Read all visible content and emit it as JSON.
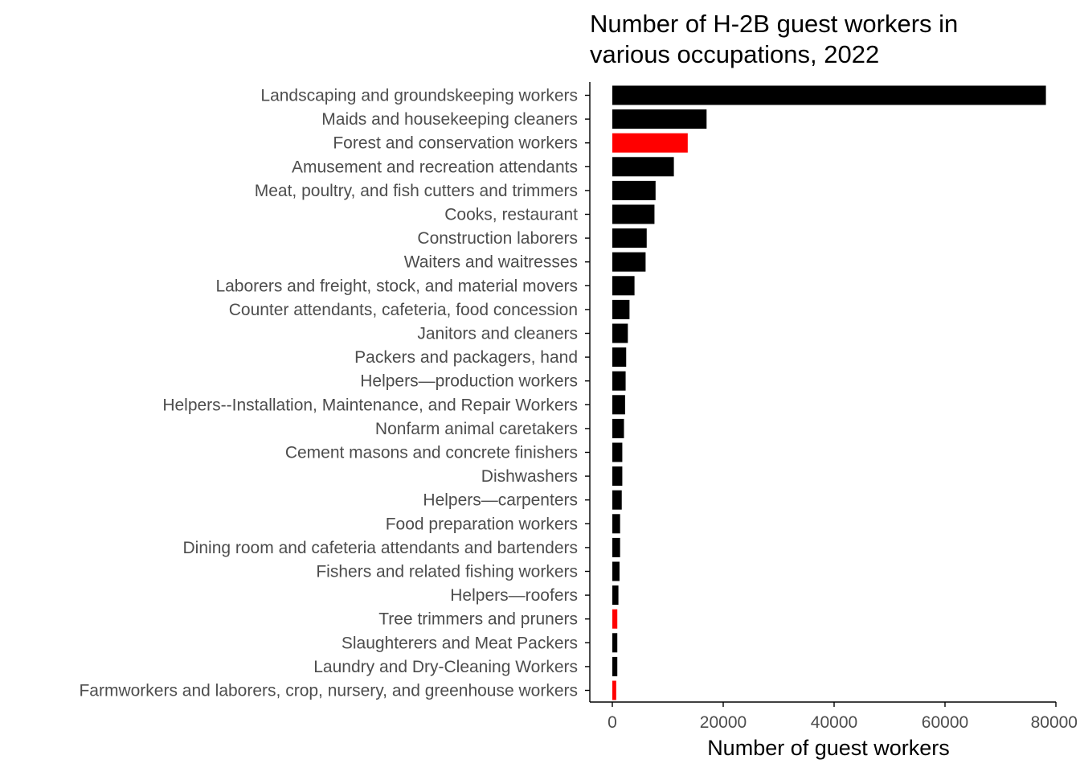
{
  "chart_data": {
    "type": "bar",
    "orientation": "horizontal",
    "title_lines": [
      "Number of H-2B guest workers in",
      "various occupations, 2022"
    ],
    "xlabel": "Number of guest workers",
    "ylabel": "",
    "xlim": [
      0,
      80000
    ],
    "xticks": [
      0,
      20000,
      40000,
      60000,
      80000
    ],
    "xtick_labels": [
      "0",
      "20000",
      "40000",
      "60000",
      "80000"
    ],
    "grid": false,
    "legend": "none",
    "categories": [
      "Landscaping and groundskeeping workers",
      "Maids and housekeeping cleaners",
      "Forest and conservation workers",
      "Amusement and recreation attendants",
      "Meat, poultry, and fish cutters and trimmers",
      "Cooks, restaurant",
      "Construction laborers",
      "Waiters and waitresses",
      "Laborers and freight, stock, and material movers",
      "Counter attendants, cafeteria, food concession",
      "Janitors and cleaners",
      "Packers and packagers, hand",
      "Helpers—production workers",
      "Helpers--Installation, Maintenance, and Repair Workers",
      "Nonfarm animal caretakers",
      "Cement masons and concrete finishers",
      "Dishwashers",
      "Helpers—carpenters",
      "Food preparation workers",
      "Dining room and cafeteria attendants and bartenders",
      "Fishers and related fishing workers",
      "Helpers—roofers",
      "Tree trimmers and pruners",
      "Slaughterers and Meat Packers",
      "Laundry and Dry-Cleaning Workers",
      "Farmworkers and laborers, crop, nursery, and greenhouse workers"
    ],
    "values": [
      78200,
      17000,
      13600,
      11100,
      7800,
      7600,
      6200,
      6000,
      4000,
      3100,
      2800,
      2500,
      2400,
      2300,
      2100,
      1800,
      1800,
      1700,
      1400,
      1400,
      1300,
      1100,
      900,
      900,
      900,
      700
    ],
    "colors": [
      "#000000",
      "#000000",
      "#ff0000",
      "#000000",
      "#000000",
      "#000000",
      "#000000",
      "#000000",
      "#000000",
      "#000000",
      "#000000",
      "#000000",
      "#000000",
      "#000000",
      "#000000",
      "#000000",
      "#000000",
      "#000000",
      "#000000",
      "#000000",
      "#000000",
      "#000000",
      "#ff0000",
      "#000000",
      "#000000",
      "#ff0000"
    ]
  }
}
